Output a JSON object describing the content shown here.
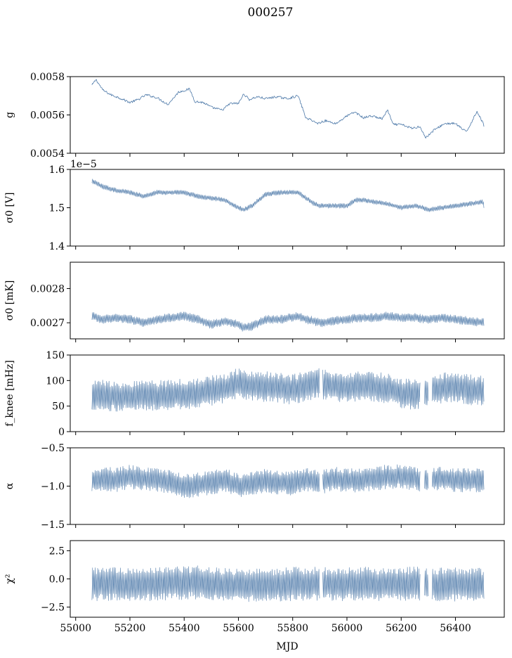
{
  "figure_title": "000257",
  "xlabel": "MJD",
  "series_color": "#4c78a8",
  "chart_data": [
    {
      "type": "line",
      "ylabel": "g",
      "xlim": [
        54980,
        56580
      ],
      "ylim": [
        0.0054,
        0.0058
      ],
      "yticks": [
        0.0054,
        0.0056,
        0.0058
      ],
      "ytick_labels": [
        "0.0054",
        "0.0056",
        "0.0058"
      ],
      "x_tick_labels_shown": false,
      "scale_offset_label": "",
      "x": [
        55060,
        55075,
        55100,
        55130,
        55160,
        55200,
        55230,
        55260,
        55300,
        55340,
        55380,
        55420,
        55440,
        55470,
        55500,
        55540,
        55570,
        55600,
        55620,
        55640,
        55670,
        55700,
        55740,
        55780,
        55820,
        55850,
        55870,
        55890,
        55920,
        55960,
        56000,
        56030,
        56060,
        56090,
        56130,
        56150,
        56170,
        56200,
        56240,
        56270,
        56290,
        56320,
        56360,
        56400,
        56440,
        56480,
        56505
      ],
      "values": [
        0.005755,
        0.005785,
        0.00573,
        0.005705,
        0.00569,
        0.005665,
        0.00568,
        0.005705,
        0.00569,
        0.005655,
        0.00572,
        0.005735,
        0.00567,
        0.005665,
        0.00564,
        0.005625,
        0.00566,
        0.00566,
        0.00571,
        0.00568,
        0.005695,
        0.005685,
        0.005695,
        0.005685,
        0.0057,
        0.00558,
        0.005575,
        0.005555,
        0.00557,
        0.005555,
        0.005595,
        0.005615,
        0.005585,
        0.005595,
        0.00558,
        0.005625,
        0.00555,
        0.00555,
        0.00553,
        0.00554,
        0.00548,
        0.00552,
        0.005555,
        0.005555,
        0.00551,
        0.00562,
        0.005545
      ],
      "envelope": 6e-06
    },
    {
      "type": "area",
      "ylabel": "σ0 [V]",
      "xlim": [
        54980,
        56580
      ],
      "ylim": [
        1.4e-05,
        1.6e-05
      ],
      "yticks": [
        1.4e-05,
        1.5e-05,
        1.6e-05
      ],
      "ytick_labels": [
        "1.4",
        "1.5",
        "1.6"
      ],
      "x_tick_labels_shown": false,
      "scale_offset_label": "1e−5",
      "x": [
        55060,
        55100,
        55150,
        55200,
        55250,
        55300,
        55350,
        55400,
        55450,
        55500,
        55550,
        55600,
        55620,
        55650,
        55700,
        55760,
        55820,
        55850,
        55880,
        55900,
        55950,
        56000,
        56030,
        56060,
        56100,
        56150,
        56200,
        56250,
        56280,
        56300,
        56350,
        56400,
        56450,
        56500,
        56505
      ],
      "values": [
        1.57e-05,
        1.555e-05,
        1.545e-05,
        1.54e-05,
        1.53e-05,
        1.54e-05,
        1.54e-05,
        1.54e-05,
        1.53e-05,
        1.525e-05,
        1.52e-05,
        1.5e-05,
        1.495e-05,
        1.505e-05,
        1.535e-05,
        1.54e-05,
        1.54e-05,
        1.525e-05,
        1.51e-05,
        1.505e-05,
        1.505e-05,
        1.505e-05,
        1.52e-05,
        1.52e-05,
        1.515e-05,
        1.51e-05,
        1.5e-05,
        1.505e-05,
        1.5e-05,
        1.495e-05,
        1.5e-05,
        1.505e-05,
        1.51e-05,
        1.515e-05,
        1.505e-05
      ],
      "envelope": 6.5e-08
    },
    {
      "type": "area",
      "ylabel": "σ0 [mK]",
      "xlim": [
        54980,
        56580
      ],
      "ylim": [
        0.002653,
        0.002877
      ],
      "yticks": [
        0.0027,
        0.0028
      ],
      "ytick_labels": [
        "0.0027",
        "0.0028"
      ],
      "x_tick_labels_shown": false,
      "scale_offset_label": "",
      "x": [
        55060,
        55100,
        55150,
        55200,
        55250,
        55300,
        55350,
        55400,
        55450,
        55500,
        55550,
        55600,
        55620,
        55650,
        55700,
        55760,
        55820,
        55850,
        55880,
        55900,
        55950,
        56000,
        56050,
        56100,
        56150,
        56200,
        56250,
        56300,
        56350,
        56400,
        56450,
        56505
      ],
      "values": [
        0.00272,
        0.00271,
        0.002715,
        0.00271,
        0.0027,
        0.00271,
        0.002715,
        0.00272,
        0.00271,
        0.002695,
        0.002705,
        0.002695,
        0.002685,
        0.00269,
        0.00271,
        0.00271,
        0.00272,
        0.00271,
        0.002705,
        0.0027,
        0.002705,
        0.00271,
        0.002715,
        0.002715,
        0.00272,
        0.002715,
        0.002715,
        0.00271,
        0.002715,
        0.00271,
        0.002705,
        0.0027
      ],
      "envelope": 1.3e-05
    },
    {
      "type": "area",
      "ylabel": "f_knee [mHz]",
      "xlim": [
        54980,
        56580
      ],
      "ylim": [
        0,
        150
      ],
      "yticks": [
        0,
        50,
        100,
        150
      ],
      "ytick_labels": [
        "0",
        "50",
        "100",
        "150"
      ],
      "x_tick_labels_shown": false,
      "scale_offset_label": "",
      "x": [
        55060,
        55100,
        55150,
        55200,
        55250,
        55300,
        55350,
        55400,
        55450,
        55500,
        55550,
        55600,
        55650,
        55700,
        55750,
        55800,
        55850,
        55900,
        55950,
        56000,
        56050,
        56100,
        56150,
        56200,
        56250,
        56300,
        56350,
        56400,
        56450,
        56505
      ],
      "values": [
        70,
        72,
        68,
        70,
        72,
        70,
        72,
        74,
        75,
        80,
        85,
        95,
        90,
        88,
        85,
        82,
        90,
        95,
        88,
        85,
        90,
        88,
        85,
        75,
        72,
        80,
        85,
        88,
        82,
        80
      ],
      "envelope": 30,
      "gaps": [
        [
          55900,
          55910
        ],
        [
          56270,
          56285
        ],
        [
          56300,
          56312
        ]
      ]
    },
    {
      "type": "area",
      "ylabel": "α",
      "xlim": [
        54980,
        56580
      ],
      "ylim": [
        -1.5,
        -0.5
      ],
      "yticks": [
        -1.5,
        -1.0,
        -0.5
      ],
      "ytick_labels": [
        "−1.5",
        "−1.0",
        "−0.5"
      ],
      "x_tick_labels_shown": false,
      "scale_offset_label": "",
      "x": [
        55060,
        55100,
        55150,
        55200,
        55250,
        55300,
        55350,
        55400,
        55450,
        55500,
        55550,
        55600,
        55650,
        55700,
        55750,
        55800,
        55850,
        55900,
        55950,
        56000,
        56050,
        56100,
        56150,
        56200,
        56250,
        56300,
        56350,
        56400,
        56450,
        56505
      ],
      "values": [
        -0.92,
        -0.9,
        -0.92,
        -0.88,
        -0.9,
        -0.92,
        -0.95,
        -1.0,
        -0.98,
        -0.95,
        -0.92,
        -1.0,
        -0.95,
        -0.93,
        -0.95,
        -0.96,
        -0.92,
        -0.95,
        -0.9,
        -0.93,
        -0.92,
        -0.9,
        -0.88,
        -0.87,
        -0.9,
        -0.92,
        -0.9,
        -0.92,
        -0.93,
        -0.92
      ],
      "envelope": 0.16,
      "gaps": [
        [
          55900,
          55910
        ],
        [
          56270,
          56285
        ],
        [
          56300,
          56312
        ]
      ]
    },
    {
      "type": "area",
      "ylabel": "χ²",
      "xlim": [
        54980,
        56580
      ],
      "ylim": [
        -3.4,
        3.4
      ],
      "yticks": [
        -2.5,
        0.0,
        2.5
      ],
      "ytick_labels": [
        "−2.5",
        "0.0",
        "2.5"
      ],
      "x_tick_labels_shown": true,
      "x_ticks": [
        55000,
        55200,
        55400,
        55600,
        55800,
        56000,
        56200,
        56400
      ],
      "x_tick_labels": [
        "55000",
        "55200",
        "55400",
        "55600",
        "55800",
        "56000",
        "56200",
        "56400"
      ],
      "scale_offset_label": "",
      "x": [
        55060,
        55150,
        55250,
        55350,
        55450,
        55550,
        55650,
        55750,
        55850,
        55950,
        56050,
        56150,
        56250,
        56350,
        56450,
        56505
      ],
      "values": [
        -0.5,
        -0.4,
        -0.5,
        -0.4,
        -0.3,
        -0.5,
        -0.6,
        -0.5,
        -0.4,
        -0.5,
        -0.4,
        -0.5,
        -0.4,
        -0.5,
        -0.5,
        -0.5
      ],
      "envelope": 1.5,
      "gaps": [
        [
          55900,
          55910
        ],
        [
          56270,
          56285
        ],
        [
          56300,
          56312
        ]
      ]
    }
  ]
}
